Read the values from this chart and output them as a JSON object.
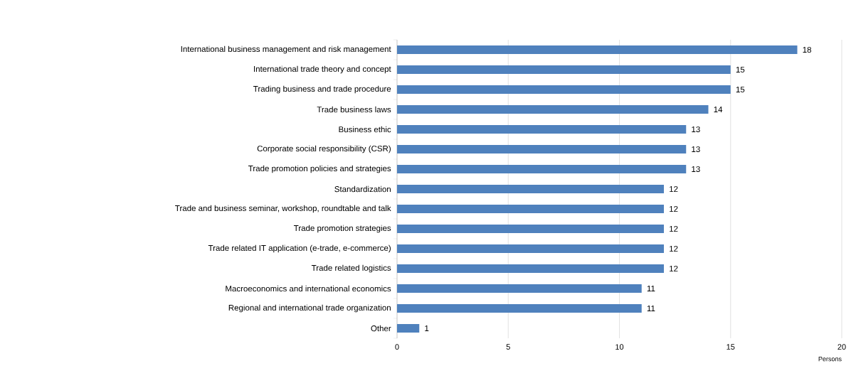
{
  "chart_data": {
    "type": "bar",
    "orientation": "horizontal",
    "xlabel": "Persons",
    "categories": [
      "International business management and risk management",
      "International trade theory and concept",
      "Trading business and trade procedure",
      "Trade business laws",
      "Business ethic",
      "Corporate social responsibility (CSR)",
      "Trade promotion policies and strategies",
      "Standardization",
      "Trade and business seminar, workshop, roundtable and talk",
      "Trade promotion strategies",
      "Trade related IT application (e-trade, e-commerce)",
      "Trade related logistics",
      "Macroeconomics and international economics",
      "Regional and international trade organization",
      "Other"
    ],
    "values": [
      18,
      15,
      15,
      14,
      13,
      13,
      13,
      12,
      12,
      12,
      12,
      12,
      11,
      11,
      1
    ],
    "color": "#4f81bd",
    "xlim": [
      0,
      20
    ],
    "xticks": [
      0,
      5,
      10,
      15,
      20
    ],
    "grid": "x",
    "data_labels": true
  }
}
